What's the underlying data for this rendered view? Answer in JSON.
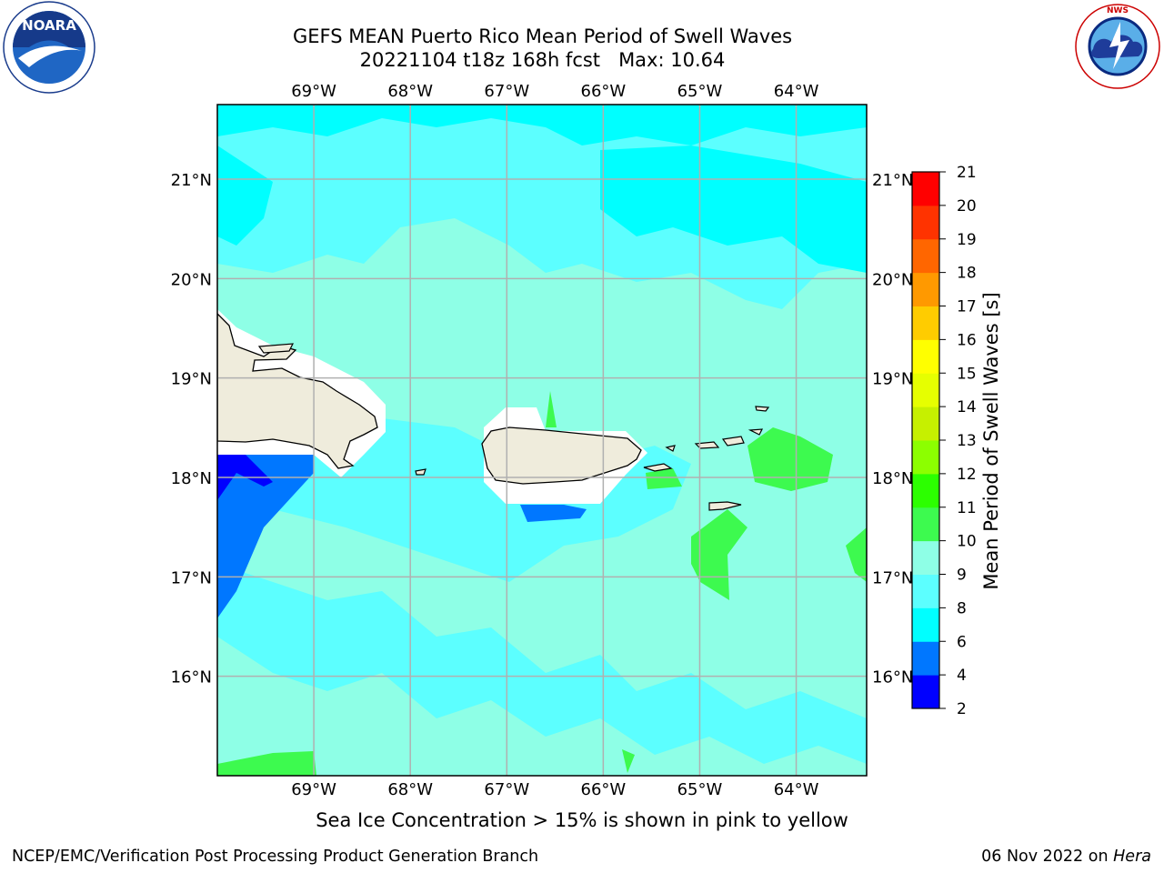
{
  "header": {
    "title_line1": "GEFS MEAN Puerto Rico Mean Period of Swell Waves",
    "title_line2": "20221104 t18z 168h fcst   Max: 10.64"
  },
  "logos": {
    "left": {
      "name": "NOARA",
      "ring_text": "NATIONAL OCEANIC AND ATMOSPHERIC ADMINISTRATION · U.S. DEPARTMENT OF COMMERCE"
    },
    "right": {
      "ring_text": "NATIONAL WEATHER SERVICE"
    }
  },
  "map": {
    "lon_ticks": [
      "69°W",
      "68°W",
      "67°W",
      "66°W",
      "65°W",
      "64°W"
    ],
    "lat_ticks": [
      "21°N",
      "20°N",
      "19°N",
      "18°N",
      "17°N",
      "16°N"
    ],
    "lon_values": [
      -69,
      -68,
      -67,
      -66,
      -65,
      -64
    ],
    "lat_values": [
      21,
      20,
      19,
      18,
      17,
      16
    ],
    "extent": {
      "lon_min": -70.0,
      "lon_max": -63.27,
      "lat_min": 15.0,
      "lat_max": 21.75
    },
    "gridlines": true,
    "colors": {
      "land": "#efecdc",
      "coast": "#000000",
      "grid": "#b0b0b0"
    }
  },
  "colorbar": {
    "label": "Mean Period of Swell Waves [s]",
    "ticks": [
      "2",
      "4",
      "6",
      "8",
      "9",
      "10",
      "11",
      "12",
      "13",
      "14",
      "15",
      "16",
      "17",
      "18",
      "19",
      "20",
      "21"
    ],
    "colors": [
      "#0000ff",
      "#0077ff",
      "#00ffff",
      "#5cffff",
      "#8effe6",
      "#3dfa4f",
      "#2cff00",
      "#8cff00",
      "#c6f000",
      "#e6ff00",
      "#ffff00",
      "#ffcc00",
      "#ff9900",
      "#ff6600",
      "#ff3300",
      "#ff0000"
    ]
  },
  "subtitle": "Sea Ice Concentration > 15% is shown in pink to yellow",
  "footer": {
    "left": "NCEP/EMC/Verification Post Processing Product Generation Branch",
    "right_prefix": "06 Nov 2022 on",
    "right_host": "Hera"
  }
}
